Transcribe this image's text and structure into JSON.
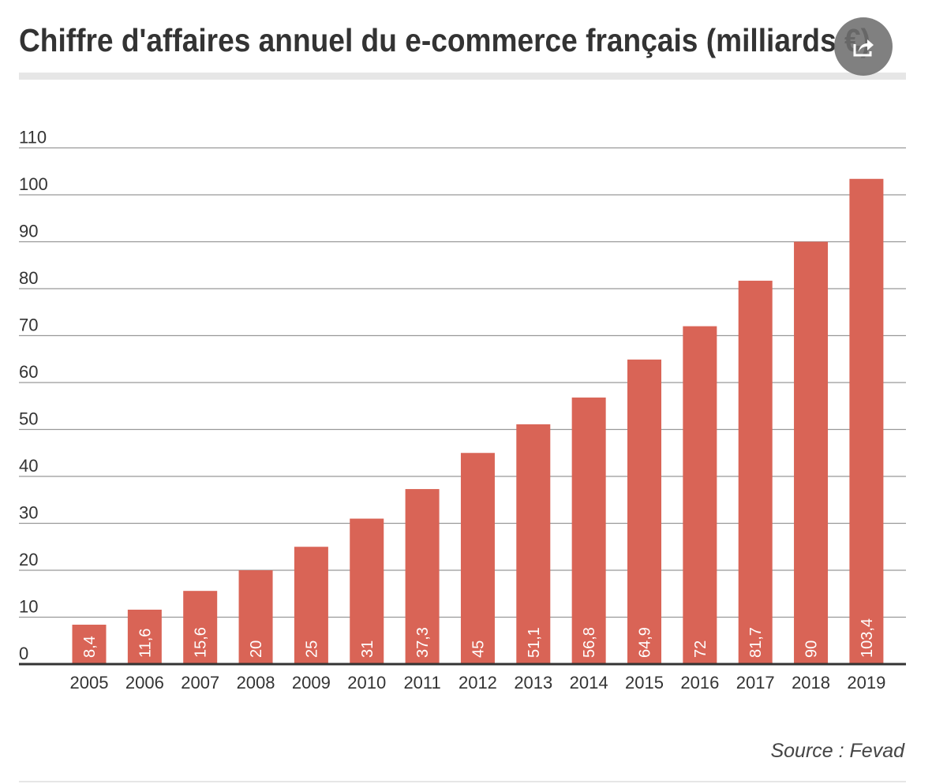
{
  "chart_data": {
    "type": "bar",
    "title": "Chiffre d'affaires annuel du e-commerce français (milliards €)",
    "categories": [
      "2005",
      "2006",
      "2007",
      "2008",
      "2009",
      "2010",
      "2011",
      "2012",
      "2013",
      "2014",
      "2015",
      "2016",
      "2017",
      "2018",
      "2019"
    ],
    "values": [
      8.4,
      11.6,
      15.6,
      20,
      25,
      31,
      37.3,
      45,
      51.1,
      56.8,
      64.9,
      72,
      81.7,
      90,
      103.4
    ],
    "value_labels": [
      "8,4",
      "11,6",
      "15,6",
      "20",
      "25",
      "31",
      "37,3",
      "45",
      "51,1",
      "56,8",
      "64,9",
      "72",
      "81,7",
      "90",
      "103,4"
    ],
    "y_ticks": [
      0,
      10,
      20,
      30,
      40,
      50,
      60,
      70,
      80,
      90,
      100,
      110
    ],
    "ylim": [
      0,
      110
    ],
    "xlabel": "",
    "ylabel": "",
    "grid": true,
    "legend": "none",
    "source": "Source : Fevad",
    "colors": {
      "bar": "#d96456",
      "grid": "#999999",
      "axis": "#333333",
      "bar_label": "#ffffff",
      "text": "#333333",
      "title_rule": "#e6e6e6"
    }
  },
  "controls": {
    "share_icon": "share-icon"
  }
}
